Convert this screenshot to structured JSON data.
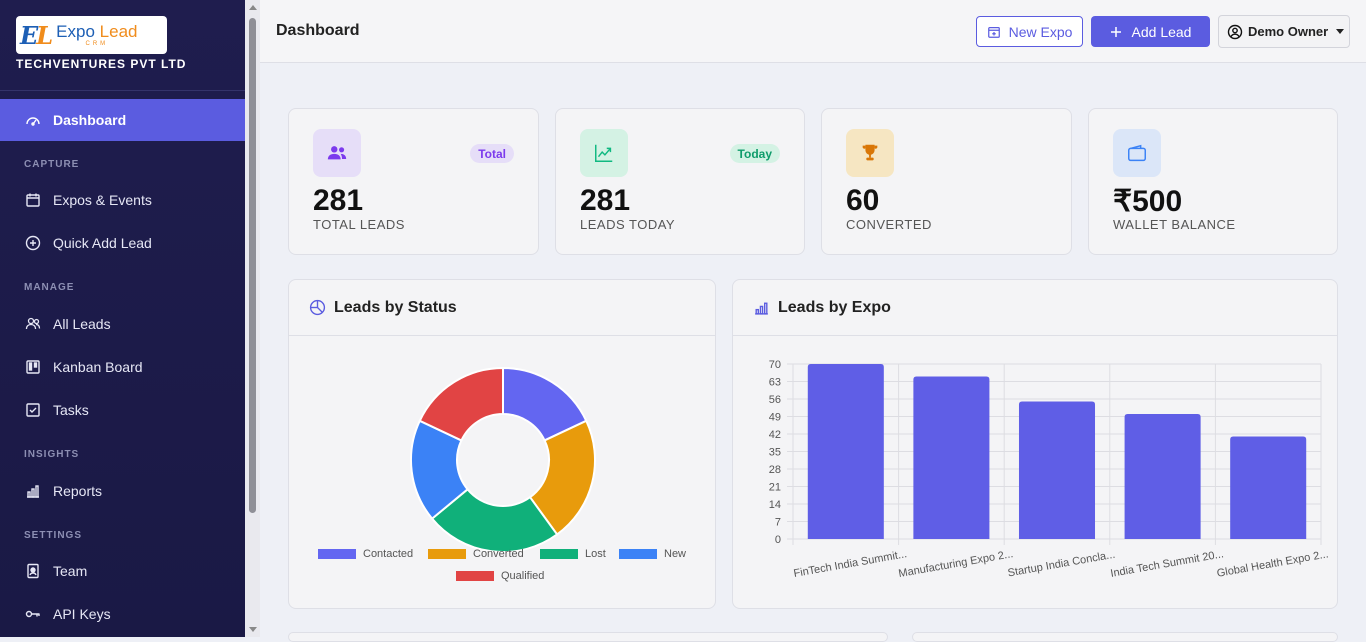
{
  "brand": {
    "logo_mark_1": "E",
    "logo_mark_2": "L",
    "logo_word_1": "Expo",
    "logo_word_2": "Lead",
    "logo_sub": "CRM",
    "company": "TECHVENTURES PVT LTD"
  },
  "sidebar": {
    "dashboard": "Dashboard",
    "sections": {
      "capture": "CAPTURE",
      "manage": "MANAGE",
      "insights": "INSIGHTS",
      "settings": "SETTINGS"
    },
    "items": {
      "expos": "Expos & Events",
      "quick_add": "Quick Add Lead",
      "all_leads": "All Leads",
      "kanban": "Kanban Board",
      "tasks": "Tasks",
      "reports": "Reports",
      "team": "Team",
      "api_keys": "API Keys"
    }
  },
  "header": {
    "title": "Dashboard",
    "new_expo": "New Expo",
    "add_lead": "Add Lead",
    "user": "Demo Owner"
  },
  "stats": [
    {
      "value": "281",
      "label": "TOTAL LEADS",
      "badge": "Total",
      "icon": "users-icon",
      "color": "#7c3aed"
    },
    {
      "value": "281",
      "label": "LEADS TODAY",
      "badge": "Today",
      "icon": "trend-icon",
      "color": "#10b981"
    },
    {
      "value": "60",
      "label": "CONVERTED",
      "icon": "trophy-icon",
      "color": "#d97706"
    },
    {
      "value": "₹500",
      "label": "WALLET BALANCE",
      "icon": "wallet-icon",
      "color": "#3b82f6"
    }
  ],
  "status_panel": {
    "title": "Leads by Status"
  },
  "expo_panel": {
    "title": "Leads by Expo"
  },
  "chart_data": [
    {
      "type": "pie",
      "title": "Leads by Status",
      "categories": [
        "Contacted",
        "Converted",
        "Lost",
        "New",
        "Qualified"
      ],
      "values": [
        18,
        22,
        24,
        18,
        18
      ],
      "colors": [
        "#6366f1",
        "#e89b0c",
        "#10b07a",
        "#3b82f6",
        "#e14444"
      ],
      "legend": "bottom"
    },
    {
      "type": "bar",
      "title": "Leads by Expo",
      "categories": [
        "FinTech India Summit...",
        "Manufacturing Expo 2...",
        "Startup India Concla...",
        "India Tech Summit 20...",
        "Global Health Expo 2..."
      ],
      "values": [
        70,
        65,
        55,
        50,
        41
      ],
      "ylim": [
        0,
        70
      ],
      "yticks": [
        "70",
        "63",
        "56",
        "49",
        "42",
        "35",
        "28",
        "21",
        "14",
        "7",
        "0"
      ],
      "grid": true,
      "color": "#5f5ee6"
    }
  ]
}
